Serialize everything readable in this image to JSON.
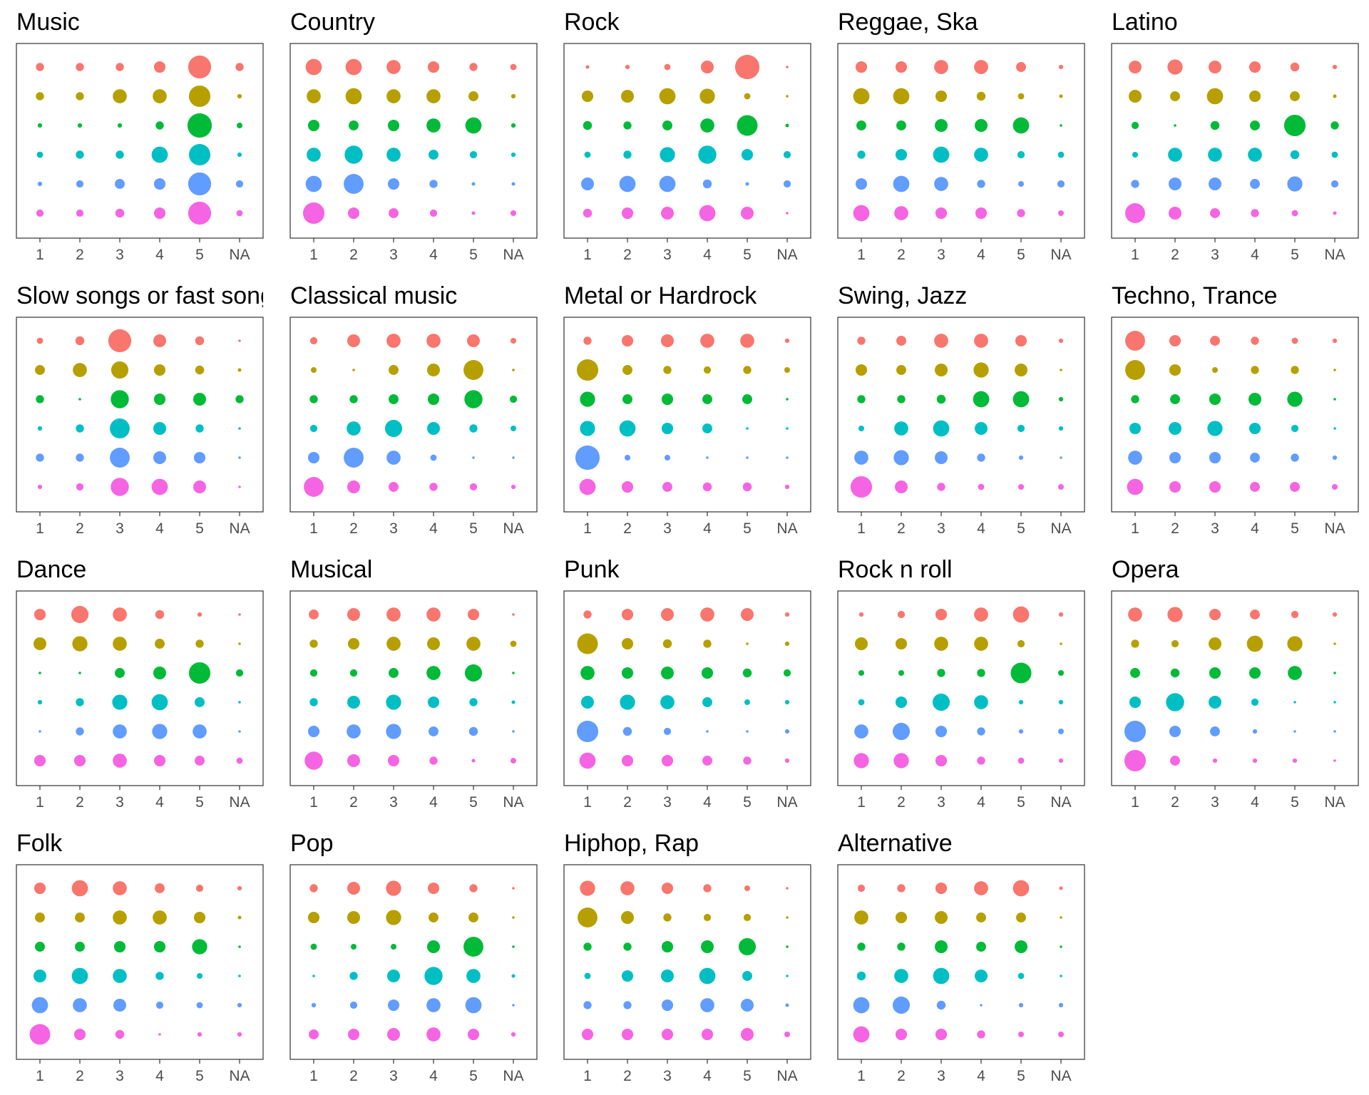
{
  "chart_data": {
    "type": "scatter",
    "subtype": "bubble-facet",
    "x_categories": [
      "1",
      "2",
      "3",
      "4",
      "5",
      "NA"
    ],
    "row_colors": [
      "#F8766D",
      "#B79F00",
      "#00BA38",
      "#00BFC4",
      "#619CFF",
      "#F564E3"
    ],
    "legend": "none",
    "grid": false,
    "value_scale": "relative bubble size 0-10",
    "panels": [
      {
        "title": "Music",
        "values": [
          [
            1,
            1,
            1,
            2,
            8,
            1
          ],
          [
            1,
            1,
            3,
            3,
            7,
            0.3
          ],
          [
            0.3,
            0.3,
            0.3,
            1,
            9,
            0.5
          ],
          [
            0.6,
            1,
            1,
            4,
            7,
            0.3
          ],
          [
            0.3,
            0.8,
            1.5,
            2,
            8,
            0.8
          ],
          [
            0.8,
            0.8,
            1.2,
            2,
            8,
            0.6
          ]
        ]
      },
      {
        "title": "Country",
        "values": [
          [
            4,
            4,
            3,
            2,
            1,
            0.6
          ],
          [
            3,
            4,
            3,
            3,
            1.5,
            0.3
          ],
          [
            2,
            1.5,
            2,
            3,
            4,
            0.3
          ],
          [
            3,
            5,
            3,
            1.5,
            0.8,
            0.3
          ],
          [
            4,
            6,
            2,
            1,
            0.2,
            0.2
          ],
          [
            7,
            2,
            1.5,
            0.8,
            0.2,
            0.5
          ]
        ]
      },
      {
        "title": "Rock",
        "values": [
          [
            0.2,
            0.3,
            0.6,
            2.5,
            9,
            0.1
          ],
          [
            2,
            2.5,
            4,
            3.5,
            0.6,
            0.1
          ],
          [
            1.2,
            1,
            1.5,
            3,
            6.5,
            0.2
          ],
          [
            0.6,
            1,
            3.5,
            5,
            2,
            0.8
          ],
          [
            2.5,
            4,
            4,
            1.2,
            0.2,
            0.8
          ],
          [
            1.2,
            2,
            2.5,
            4,
            2.5,
            0.1
          ]
        ]
      },
      {
        "title": "Reggae, Ska",
        "values": [
          [
            2,
            2,
            3,
            3,
            1.5,
            0.3
          ],
          [
            4,
            4,
            2,
            1.2,
            0.6,
            0.2
          ],
          [
            1.5,
            1.5,
            2.5,
            2.5,
            4,
            0.1
          ],
          [
            1,
            2,
            4,
            3,
            0.8,
            0.6
          ],
          [
            2,
            4,
            3,
            1,
            0.5,
            0.8
          ],
          [
            4,
            3,
            2,
            2,
            1,
            0.5
          ]
        ]
      },
      {
        "title": "Latino",
        "values": [
          [
            2.5,
            3.5,
            2.5,
            2,
            1.2,
            0.3
          ],
          [
            2.5,
            1.5,
            4,
            2,
            1.5,
            0.2
          ],
          [
            0.8,
            0.1,
            1.2,
            1.5,
            7,
            1
          ],
          [
            0.5,
            3,
            3,
            3,
            1.2,
            0.6
          ],
          [
            1,
            2.5,
            2.5,
            1.5,
            3.5,
            0.8
          ],
          [
            6,
            2.5,
            1.5,
            1,
            0.6,
            0.2
          ]
        ]
      },
      {
        "title": "Slow songs or fast songs",
        "values": [
          [
            0.6,
            1.2,
            8,
            2.5,
            1.2,
            0.1
          ],
          [
            1.5,
            3,
            4.5,
            2,
            1.2,
            0.2
          ],
          [
            1,
            0.1,
            5,
            2,
            2.5,
            1
          ],
          [
            0.3,
            1,
            6,
            2.5,
            1,
            0.1
          ],
          [
            1,
            1,
            6,
            2.5,
            2,
            0.1
          ],
          [
            0.3,
            0.8,
            5,
            4,
            2.5,
            0.1
          ]
        ]
      },
      {
        "title": "Classical music",
        "values": [
          [
            0.8,
            2.5,
            3,
            3,
            2.5,
            0.5
          ],
          [
            0.5,
            0.1,
            1.5,
            2.5,
            6,
            0.1
          ],
          [
            1,
            1,
            1.5,
            2,
            5,
            0.8
          ],
          [
            0.8,
            3,
            4.5,
            2.5,
            1,
            0.5
          ],
          [
            2,
            6,
            3,
            0.6,
            0.1,
            0.1
          ],
          [
            6,
            2.5,
            1.5,
            1,
            0.8,
            0.3
          ]
        ]
      },
      {
        "title": "Metal or Hardrock",
        "values": [
          [
            1,
            2,
            2.5,
            3,
            3,
            0.3
          ],
          [
            7,
            1.5,
            1,
            0.8,
            1,
            0.5
          ],
          [
            3.5,
            1.5,
            2,
            1.5,
            1.5,
            0.1
          ],
          [
            3.5,
            4,
            2,
            1.5,
            0.1,
            0.1
          ],
          [
            9,
            0.5,
            0.5,
            0.1,
            0.1,
            0.1
          ],
          [
            4,
            2,
            1.5,
            1.2,
            1.2,
            0.3
          ]
        ]
      },
      {
        "title": "Swing, Jazz",
        "values": [
          [
            1,
            1.5,
            3,
            3,
            2,
            0.3
          ],
          [
            2,
            1.5,
            2.5,
            3.5,
            2.5,
            0.1
          ],
          [
            1,
            1,
            1.2,
            4,
            4,
            0.3
          ],
          [
            0.5,
            3,
            4,
            2.5,
            0.8,
            0.3
          ],
          [
            3,
            3.5,
            2.5,
            1,
            0.3,
            0.1
          ],
          [
            7,
            2.5,
            1,
            0.6,
            0.5,
            0.5
          ]
        ]
      },
      {
        "title": "Techno, Trance",
        "values": [
          [
            6,
            2,
            1.5,
            1,
            0.6,
            0.3
          ],
          [
            6,
            2,
            0.5,
            1,
            1,
            0.1
          ],
          [
            1,
            1.5,
            2,
            2.5,
            3.5,
            0.1
          ],
          [
            2,
            2.5,
            3.5,
            2,
            0.8,
            0.1
          ],
          [
            3,
            2,
            2,
            1.5,
            1,
            0.3
          ],
          [
            4,
            2,
            2,
            1.5,
            1.5,
            0.5
          ]
        ]
      },
      {
        "title": "Dance",
        "values": [
          [
            2,
            4.5,
            3,
            1.2,
            0.3,
            0.1
          ],
          [
            2.5,
            3.5,
            3,
            1.5,
            1,
            0.1
          ],
          [
            0.1,
            0.1,
            1.5,
            2.5,
            7,
            0.8
          ],
          [
            0.3,
            1,
            3.5,
            4,
            1.5,
            0.1
          ],
          [
            0.1,
            1,
            3,
            3.5,
            3,
            0.1
          ],
          [
            2,
            2,
            3,
            2,
            1.5,
            0.6
          ]
        ]
      },
      {
        "title": "Musical",
        "values": [
          [
            1.5,
            2.5,
            3,
            3,
            2,
            0.1
          ],
          [
            1,
            2,
            3,
            2.5,
            3,
            0.6
          ],
          [
            0.8,
            0.8,
            1.5,
            3,
            4.5,
            0.1
          ],
          [
            1,
            2.5,
            3.5,
            2,
            1,
            0.2
          ],
          [
            2,
            3,
            3.5,
            1.5,
            1.2,
            0.1
          ],
          [
            5,
            2.5,
            2,
            1,
            0.2,
            0.5
          ]
        ]
      },
      {
        "title": "Punk",
        "values": [
          [
            1,
            2,
            2.5,
            3,
            2.5,
            0.3
          ],
          [
            6.5,
            2,
            1.2,
            1,
            0.1,
            0.3
          ],
          [
            3,
            2,
            2.5,
            2,
            1.2,
            0.8
          ],
          [
            2.5,
            3.5,
            3,
            1.5,
            0.5,
            0.3
          ],
          [
            7,
            1.2,
            0.8,
            0.1,
            0.1,
            0.3
          ],
          [
            4,
            2,
            2,
            1.5,
            1,
            0.3
          ]
        ]
      },
      {
        "title": "Rock n roll",
        "values": [
          [
            0.3,
            0.8,
            2,
            3,
            4,
            0.3
          ],
          [
            2.5,
            2,
            3,
            3,
            0.8,
            0.1
          ],
          [
            0.5,
            0.5,
            1,
            1,
            6.5,
            0.5
          ],
          [
            0.6,
            2,
            4.5,
            3,
            0.3,
            0.3
          ],
          [
            3,
            4.5,
            2,
            1,
            0.3,
            0.5
          ],
          [
            3.5,
            3.5,
            2,
            1,
            0.6,
            0.3
          ]
        ]
      },
      {
        "title": "Opera",
        "values": [
          [
            3,
            3.5,
            2,
            1.5,
            0.8,
            0.3
          ],
          [
            1,
            0.8,
            2.5,
            4,
            3.5,
            0.1
          ],
          [
            1.5,
            1.2,
            2,
            2,
            3,
            0.1
          ],
          [
            2,
            5,
            2.5,
            0.8,
            0.1,
            0.1
          ],
          [
            7,
            2,
            1.5,
            0.3,
            0.1,
            0.1
          ],
          [
            7,
            1.5,
            0.3,
            0.3,
            0.3,
            0.1
          ]
        ]
      },
      {
        "title": "Folk",
        "values": [
          [
            2,
            4,
            3,
            1.5,
            0.8,
            0.3
          ],
          [
            1.5,
            1.5,
            3,
            3,
            2,
            0.2
          ],
          [
            1.5,
            1.5,
            2,
            2,
            3.5,
            0.1
          ],
          [
            2.5,
            4,
            3,
            1,
            0.5,
            0.1
          ],
          [
            4,
            3,
            2.5,
            0.8,
            0.6,
            0.3
          ],
          [
            6.5,
            2,
            1.2,
            0.1,
            0.3,
            0.3
          ]
        ]
      },
      {
        "title": "Pop",
        "values": [
          [
            1,
            2.5,
            3.5,
            2,
            1,
            0.1
          ],
          [
            2,
            2.5,
            3.5,
            1.5,
            1.5,
            0.1
          ],
          [
            0.6,
            0.5,
            0.5,
            2.5,
            6,
            0.1
          ],
          [
            0.1,
            1,
            2.5,
            5,
            3,
            0.2
          ],
          [
            0.3,
            0.8,
            2,
            3,
            4,
            0.1
          ],
          [
            1.5,
            2,
            2.5,
            3,
            2,
            0.3
          ]
        ]
      },
      {
        "title": "Hiphop, Rap",
        "values": [
          [
            3.5,
            3,
            2,
            1,
            0.5,
            0.1
          ],
          [
            6,
            2.5,
            1,
            0.8,
            0.8,
            0.1
          ],
          [
            1,
            1,
            2,
            2.5,
            4.5,
            0.1
          ],
          [
            0.6,
            2,
            2.5,
            4,
            1.5,
            0.1
          ],
          [
            1,
            1,
            2,
            3,
            2.5,
            0.2
          ],
          [
            2,
            2,
            2,
            2,
            2.5,
            0.5
          ]
        ]
      },
      {
        "title": "Alternative",
        "values": [
          [
            0.8,
            1,
            2,
            3,
            4,
            0.2
          ],
          [
            3,
            2,
            2.5,
            1.5,
            1.5,
            0.1
          ],
          [
            1,
            1,
            2.5,
            1.5,
            2.5,
            0.1
          ],
          [
            1.2,
            3,
            4,
            2.5,
            0.6,
            0.1
          ],
          [
            4,
            4.5,
            1.2,
            0.1,
            0.3,
            0.3
          ],
          [
            4,
            2,
            2,
            1,
            0.5,
            0.5
          ]
        ]
      }
    ]
  }
}
